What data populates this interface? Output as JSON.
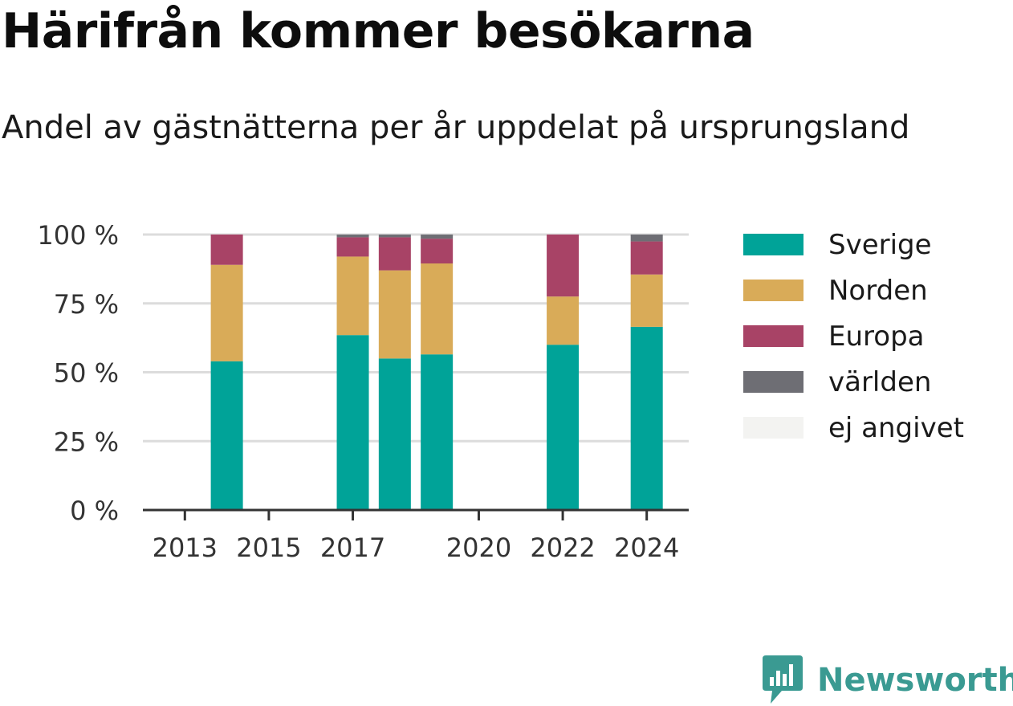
{
  "title": "Härifrån kommer besökarna",
  "subtitle": "Andel av gästnätterna per år uppdelat på ursprungsland",
  "brand": {
    "name": "Newsworthy",
    "icon": "newsworthy-logo-icon",
    "color": "#3a9a92"
  },
  "chart_data": {
    "type": "bar",
    "stacked": true,
    "x_ticks": [
      "2013",
      "2015",
      "2017",
      "2020",
      "2022",
      "2024"
    ],
    "x_tick_values": [
      2013,
      2015,
      2017,
      2020,
      2022,
      2024
    ],
    "xlim": [
      2012,
      2025
    ],
    "y_ticks": [
      "0 %",
      "25 %",
      "50 %",
      "75 %",
      "100 %"
    ],
    "y_tick_values": [
      0,
      25,
      50,
      75,
      100
    ],
    "ylim": [
      0,
      100
    ],
    "grid": true,
    "legend_position": "right",
    "x": [
      2014,
      2017,
      2018,
      2019,
      2022,
      2024
    ],
    "series": [
      {
        "name": "Sverige",
        "color": "#00a398",
        "values": [
          54,
          63.5,
          55,
          56.5,
          60,
          66.5
        ]
      },
      {
        "name": "Norden",
        "color": "#d9ab58",
        "values": [
          35,
          28.5,
          32,
          33,
          17.5,
          19
        ]
      },
      {
        "name": "Europa",
        "color": "#a84366",
        "values": [
          11,
          7,
          12,
          9,
          22.5,
          12
        ]
      },
      {
        "name": "världen",
        "color": "#6e6e74",
        "values": [
          0,
          1,
          1,
          1.5,
          0,
          2.5
        ]
      },
      {
        "name": "ej angivet",
        "color": "#f3f3f1",
        "values": [
          0,
          0,
          0,
          0,
          0,
          0
        ]
      }
    ]
  }
}
